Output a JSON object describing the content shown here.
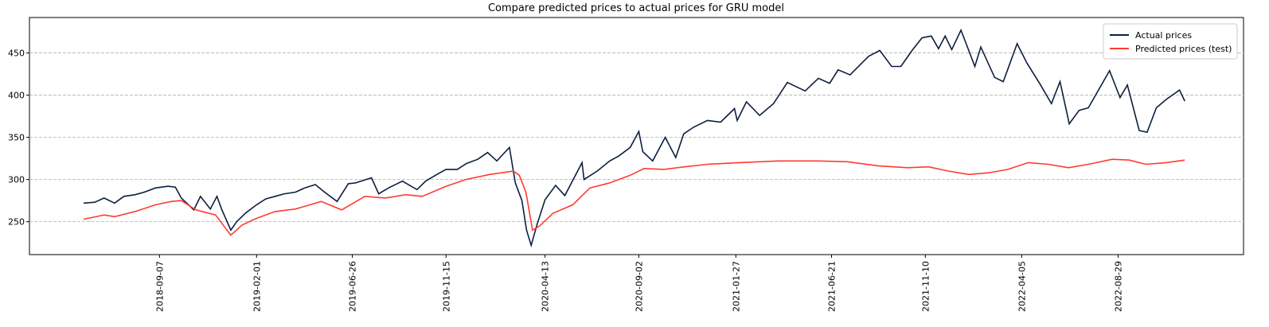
{
  "chart_data": {
    "type": "line",
    "title": "Compare predicted prices to actual prices for GRU model",
    "xlim": [
      "2018-02-22",
      "2023-03-07"
    ],
    "xticks": [
      "2018-09-07",
      "2019-02-01",
      "2019-06-26",
      "2019-11-15",
      "2020-04-13",
      "2020-09-02",
      "2021-01-27",
      "2021-06-21",
      "2021-11-10",
      "2022-04-05",
      "2022-08-29"
    ],
    "ylim": [
      211,
      492
    ],
    "yticks": [
      250,
      300,
      350,
      400,
      450
    ],
    "grid": true,
    "legend": "upper right",
    "series": [
      {
        "name": "Actual prices",
        "color": "#0c1f3f",
        "x": [
          "2018-05-15",
          "2018-06-01",
          "2018-06-15",
          "2018-07-01",
          "2018-07-15",
          "2018-08-01",
          "2018-08-15",
          "2018-09-01",
          "2018-09-20",
          "2018-10-01",
          "2018-10-10",
          "2018-10-29",
          "2018-11-08",
          "2018-11-23",
          "2018-12-03",
          "2018-12-10",
          "2018-12-24",
          "2019-01-02",
          "2019-01-15",
          "2019-02-01",
          "2019-02-15",
          "2019-03-01",
          "2019-03-15",
          "2019-04-01",
          "2019-04-15",
          "2019-05-01",
          "2019-05-15",
          "2019-06-03",
          "2019-06-20",
          "2019-07-01",
          "2019-07-25",
          "2019-08-05",
          "2019-08-20",
          "2019-09-10",
          "2019-10-02",
          "2019-10-15",
          "2019-11-01",
          "2019-11-15",
          "2019-12-02",
          "2019-12-16",
          "2020-01-02",
          "2020-01-17",
          "2020-01-31",
          "2020-02-19",
          "2020-02-28",
          "2020-03-09",
          "2020-03-16",
          "2020-03-23",
          "2020-04-01",
          "2020-04-13",
          "2020-04-29",
          "2020-05-13",
          "2020-06-08",
          "2020-06-11",
          "2020-07-01",
          "2020-07-20",
          "2020-08-03",
          "2020-08-20",
          "2020-09-02",
          "2020-09-08",
          "2020-09-23",
          "2020-10-12",
          "2020-10-28",
          "2020-11-09",
          "2020-11-24",
          "2020-12-15",
          "2021-01-04",
          "2021-01-25",
          "2021-01-29",
          "2021-02-12",
          "2021-03-04",
          "2021-03-25",
          "2021-04-15",
          "2021-05-12",
          "2021-06-01",
          "2021-06-18",
          "2021-07-01",
          "2021-07-19",
          "2021-08-16",
          "2021-09-02",
          "2021-09-20",
          "2021-10-04",
          "2021-10-21",
          "2021-11-05",
          "2021-11-19",
          "2021-11-30",
          "2021-12-10",
          "2021-12-20",
          "2022-01-03",
          "2022-01-24",
          "2022-02-02",
          "2022-02-23",
          "2022-03-08",
          "2022-03-29",
          "2022-04-13",
          "2022-05-02",
          "2022-05-20",
          "2022-06-02",
          "2022-06-16",
          "2022-07-01",
          "2022-07-15",
          "2022-08-16",
          "2022-09-01",
          "2022-09-12",
          "2022-09-30",
          "2022-10-12",
          "2022-10-26",
          "2022-11-10",
          "2022-11-30",
          "2022-12-08"
        ],
        "values": [
          272,
          273,
          278,
          272,
          280,
          282,
          285,
          290,
          292,
          291,
          278,
          264,
          280,
          265,
          280,
          265,
          240,
          250,
          260,
          270,
          277,
          280,
          283,
          285,
          290,
          294,
          285,
          274,
          295,
          296,
          302,
          283,
          290,
          298,
          288,
          298,
          306,
          312,
          312,
          319,
          324,
          332,
          322,
          338,
          296,
          275,
          240,
          222,
          247,
          276,
          293,
          281,
          320,
          300,
          310,
          322,
          328,
          338,
          357,
          333,
          322,
          350,
          326,
          354,
          362,
          370,
          368,
          384,
          370,
          392,
          376,
          390,
          415,
          405,
          420,
          414,
          430,
          424,
          446,
          453,
          434,
          434,
          453,
          468,
          470,
          455,
          470,
          454,
          477,
          434,
          457,
          421,
          416,
          461,
          438,
          414,
          390,
          416,
          366,
          382,
          385,
          429,
          397,
          412,
          358,
          356,
          385,
          395,
          406,
          393
        ]
      },
      {
        "name": "Predicted prices (test)",
        "color": "#ff3b30",
        "x": [
          "2018-05-15",
          "2018-06-15",
          "2018-07-01",
          "2018-08-01",
          "2018-09-01",
          "2018-09-25",
          "2018-10-10",
          "2018-11-01",
          "2018-12-01",
          "2018-12-24",
          "2019-01-10",
          "2019-02-01",
          "2019-03-01",
          "2019-04-01",
          "2019-05-10",
          "2019-06-10",
          "2019-07-15",
          "2019-08-15",
          "2019-09-15",
          "2019-10-10",
          "2019-11-15",
          "2019-12-15",
          "2020-01-20",
          "2020-02-25",
          "2020-03-05",
          "2020-03-15",
          "2020-03-25",
          "2020-04-05",
          "2020-04-25",
          "2020-05-25",
          "2020-06-20",
          "2020-07-20",
          "2020-08-20",
          "2020-09-10",
          "2020-10-10",
          "2020-11-10",
          "2020-12-15",
          "2021-02-01",
          "2021-04-01",
          "2021-06-01",
          "2021-07-15",
          "2021-09-01",
          "2021-10-15",
          "2021-11-15",
          "2021-12-15",
          "2022-01-15",
          "2022-02-15",
          "2022-03-15",
          "2022-04-15",
          "2022-05-15",
          "2022-06-15",
          "2022-07-15",
          "2022-08-20",
          "2022-09-15",
          "2022-10-10",
          "2022-11-10",
          "2022-12-08"
        ],
        "values": [
          253,
          258,
          256,
          262,
          270,
          274,
          275,
          264,
          258,
          234,
          246,
          254,
          262,
          265,
          274,
          264,
          280,
          278,
          282,
          280,
          292,
          300,
          306,
          310,
          305,
          285,
          240,
          245,
          260,
          270,
          290,
          296,
          305,
          313,
          312,
          315,
          318,
          320,
          322,
          322,
          321,
          316,
          314,
          315,
          310,
          306,
          308,
          312,
          320,
          318,
          314,
          318,
          324,
          323,
          318,
          320,
          323
        ]
      }
    ]
  }
}
